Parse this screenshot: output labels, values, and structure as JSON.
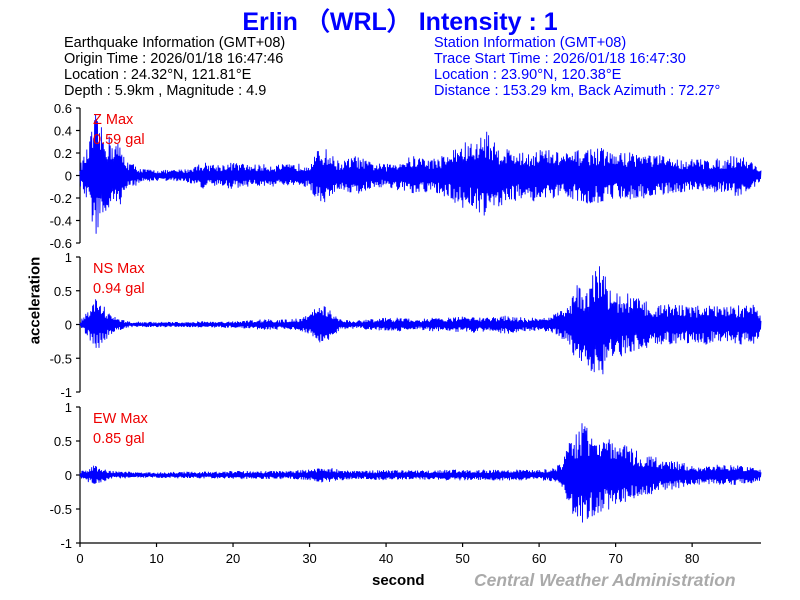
{
  "header": {
    "title": "Erlin （WRL） Intensity : 1"
  },
  "earthquake_info": {
    "heading": "Earthquake Information  (GMT+08)",
    "origin_time": "Origin Time : 2026/01/18 16:47:46",
    "location": "Location : 24.32°N, 121.81°E",
    "depth_magnitude": "Depth : 5.9km , Magnitude : 4.9"
  },
  "station_info": {
    "heading": "Station Information  (GMT+08)",
    "trace_start": "Trace Start Time : 2026/01/18 16:47:30",
    "location": "Location : 23.90°N, 120.38°E",
    "distance": "Distance : 153.29 km, Back Azimuth : 72.27°"
  },
  "footer": {
    "credit": "Central Weather Administration"
  },
  "chart_data": {
    "type": "line",
    "xlabel": "second",
    "ylabel": "acceleration",
    "xlim": [
      0,
      89
    ],
    "xticks": [
      0,
      10,
      20,
      30,
      40,
      50,
      60,
      70,
      80
    ],
    "line_color": "#0000ff",
    "panels": [
      {
        "component": "Z",
        "max_label": "Z Max",
        "max_value": "0.59 gal",
        "ylim": [
          -0.6,
          0.6
        ],
        "yticks": [
          0.6,
          0.4,
          0.2,
          0,
          -0.2,
          -0.4,
          -0.6
        ],
        "envelope_seconds": [
          0,
          1,
          2,
          3,
          4,
          5,
          6,
          8,
          10,
          12,
          14,
          16,
          18,
          20,
          22,
          24,
          26,
          28,
          30,
          31,
          32,
          33,
          34,
          36,
          38,
          40,
          42,
          44,
          46,
          48,
          50,
          52,
          53,
          54,
          56,
          58,
          60,
          62,
          64,
          66,
          68,
          70,
          72,
          74,
          76,
          78,
          80,
          82,
          84,
          86,
          88,
          89
        ],
        "envelope_amplitude": [
          0.1,
          0.25,
          0.55,
          0.4,
          0.35,
          0.3,
          0.15,
          0.06,
          0.05,
          0.05,
          0.06,
          0.12,
          0.1,
          0.12,
          0.1,
          0.1,
          0.1,
          0.1,
          0.12,
          0.22,
          0.25,
          0.18,
          0.12,
          0.18,
          0.12,
          0.1,
          0.15,
          0.18,
          0.15,
          0.2,
          0.3,
          0.3,
          0.45,
          0.3,
          0.25,
          0.2,
          0.25,
          0.22,
          0.2,
          0.25,
          0.25,
          0.2,
          0.22,
          0.2,
          0.18,
          0.15,
          0.15,
          0.15,
          0.15,
          0.2,
          0.12,
          0.05
        ]
      },
      {
        "component": "NS",
        "max_label": "NS Max",
        "max_value": "0.94 gal",
        "ylim": [
          -1,
          1
        ],
        "yticks": [
          1,
          0.5,
          0,
          -0.5,
          -1
        ],
        "envelope_seconds": [
          0,
          1,
          2,
          3,
          4,
          5,
          6,
          8,
          10,
          12,
          14,
          16,
          18,
          20,
          22,
          24,
          26,
          28,
          30,
          31,
          32,
          33,
          34,
          36,
          38,
          40,
          42,
          44,
          46,
          48,
          50,
          52,
          54,
          56,
          58,
          60,
          62,
          64,
          65,
          66,
          67,
          68,
          69,
          70,
          72,
          74,
          76,
          78,
          80,
          82,
          84,
          86,
          88,
          89
        ],
        "envelope_amplitude": [
          0.05,
          0.2,
          0.4,
          0.3,
          0.15,
          0.1,
          0.05,
          0.04,
          0.04,
          0.04,
          0.04,
          0.05,
          0.05,
          0.05,
          0.06,
          0.08,
          0.08,
          0.08,
          0.15,
          0.3,
          0.3,
          0.2,
          0.08,
          0.06,
          0.08,
          0.1,
          0.1,
          0.08,
          0.1,
          0.1,
          0.12,
          0.12,
          0.12,
          0.14,
          0.1,
          0.1,
          0.15,
          0.3,
          0.6,
          0.5,
          0.75,
          0.94,
          0.6,
          0.5,
          0.45,
          0.35,
          0.3,
          0.3,
          0.28,
          0.3,
          0.25,
          0.3,
          0.3,
          0.15
        ]
      },
      {
        "component": "EW",
        "max_label": "EW Max",
        "max_value": "0.85 gal",
        "ylim": [
          -1,
          1
        ],
        "yticks": [
          1,
          0.5,
          0,
          -0.5,
          -1
        ],
        "envelope_seconds": [
          0,
          1,
          2,
          3,
          4,
          6,
          8,
          10,
          12,
          14,
          16,
          18,
          20,
          22,
          24,
          26,
          28,
          30,
          32,
          34,
          36,
          38,
          40,
          42,
          44,
          46,
          48,
          50,
          52,
          54,
          56,
          58,
          60,
          62,
          63,
          64,
          65,
          66,
          67,
          68,
          69,
          70,
          72,
          74,
          76,
          78,
          80,
          82,
          84,
          86,
          88,
          89
        ],
        "envelope_amplitude": [
          0.05,
          0.1,
          0.15,
          0.1,
          0.06,
          0.05,
          0.04,
          0.04,
          0.05,
          0.05,
          0.05,
          0.05,
          0.06,
          0.06,
          0.06,
          0.06,
          0.07,
          0.08,
          0.12,
          0.08,
          0.06,
          0.07,
          0.08,
          0.07,
          0.07,
          0.07,
          0.08,
          0.08,
          0.08,
          0.08,
          0.08,
          0.08,
          0.08,
          0.1,
          0.2,
          0.5,
          0.7,
          0.85,
          0.7,
          0.6,
          0.55,
          0.5,
          0.4,
          0.3,
          0.25,
          0.2,
          0.15,
          0.15,
          0.15,
          0.15,
          0.12,
          0.08
        ]
      }
    ]
  }
}
